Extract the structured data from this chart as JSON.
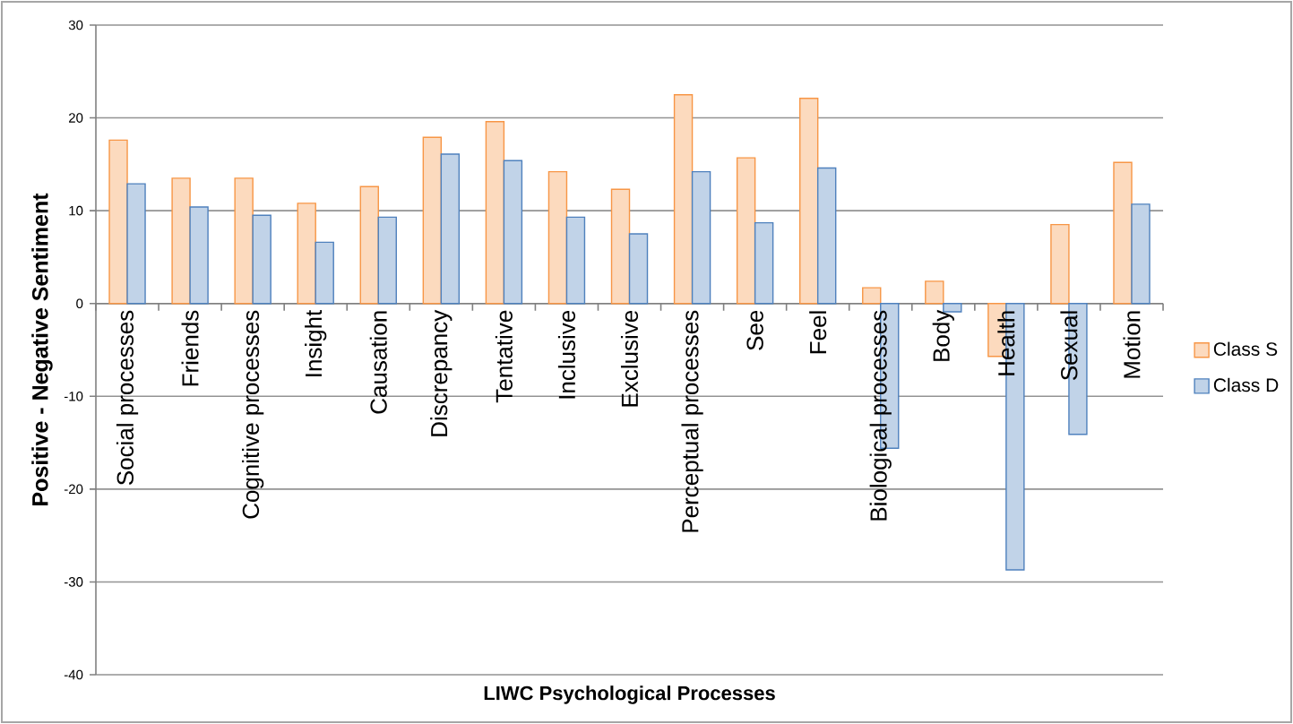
{
  "chart_data": {
    "type": "bar",
    "xlabel": "LIWC Psychological Processes",
    "ylabel": "Positive - Negative Sentiment",
    "categories": [
      "Social processes",
      "Friends",
      "Cognitive processes",
      "Insight",
      "Causation",
      "Discrepancy",
      "Tentative",
      "Inclusive",
      "Exclusive",
      "Perceptual processes",
      "See",
      "Feel",
      "Biological processes",
      "Body",
      "Health",
      "Sexual",
      "Motion"
    ],
    "series": [
      {
        "name": "Class S",
        "color": "#f79646",
        "values": [
          17.6,
          13.5,
          13.5,
          10.8,
          12.6,
          17.9,
          19.6,
          14.2,
          12.3,
          22.5,
          15.7,
          22.1,
          1.7,
          2.4,
          -5.7,
          8.5,
          15.2
        ]
      },
      {
        "name": "Class D",
        "color": "#4f81bd",
        "values": [
          12.9,
          10.4,
          9.5,
          6.6,
          9.3,
          16.1,
          15.4,
          9.3,
          7.5,
          14.2,
          8.7,
          14.6,
          -15.6,
          -0.9,
          -28.7,
          -14.1,
          10.7
        ]
      }
    ],
    "ylim": [
      -40,
      30
    ],
    "yticks": [
      -40,
      -30,
      -20,
      -10,
      0,
      10,
      20,
      30
    ],
    "grid": "y",
    "legend": "right"
  }
}
